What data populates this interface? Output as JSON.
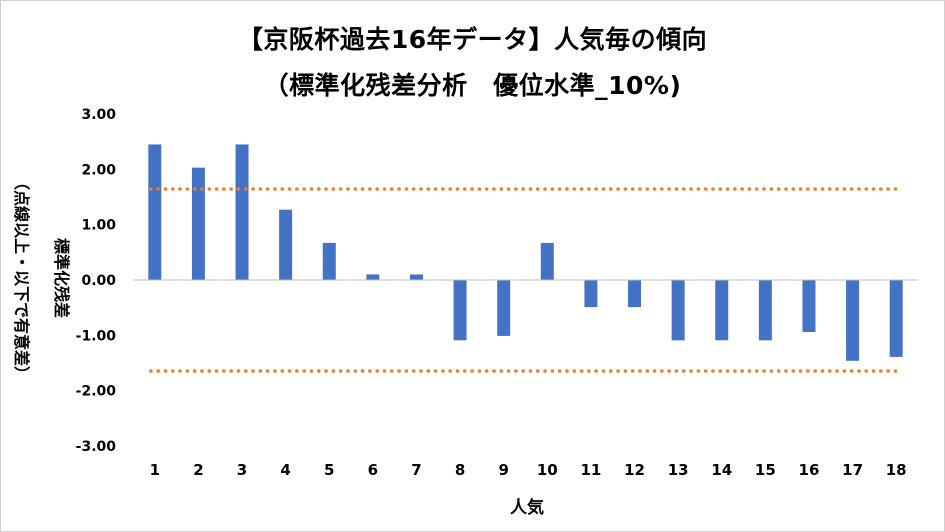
{
  "chart_data": {
    "type": "bar",
    "title_line1": "【京阪杯過去16年データ】人気毎の傾向",
    "title_line2": "（標準化残差分析　優位水準_10%)",
    "xlabel": "人気",
    "ylabel_main": "標準化残差",
    "ylabel_sub": "（点線以上・以下で有意差）",
    "categories": [
      "1",
      "2",
      "3",
      "4",
      "5",
      "6",
      "7",
      "8",
      "9",
      "10",
      "11",
      "12",
      "13",
      "14",
      "15",
      "16",
      "17",
      "18"
    ],
    "values": [
      2.45,
      2.03,
      2.45,
      1.27,
      0.67,
      0.1,
      0.1,
      -1.09,
      -1.01,
      0.67,
      -0.49,
      -0.49,
      -1.09,
      -1.09,
      -1.09,
      -0.94,
      -1.46,
      -1.39
    ],
    "ylim": [
      -3.0,
      3.0
    ],
    "yticks": [
      "3.00",
      "2.00",
      "1.00",
      "0.00",
      "-1.00",
      "-2.00",
      "-3.00"
    ],
    "ytick_values": [
      3,
      2,
      1,
      0,
      -1,
      -2,
      -3
    ],
    "threshold_upper": 1.645,
    "threshold_lower": -1.645,
    "bar_color": "#4472c4",
    "threshold_color": "#ed7d31",
    "grid": false,
    "legend": "none"
  }
}
